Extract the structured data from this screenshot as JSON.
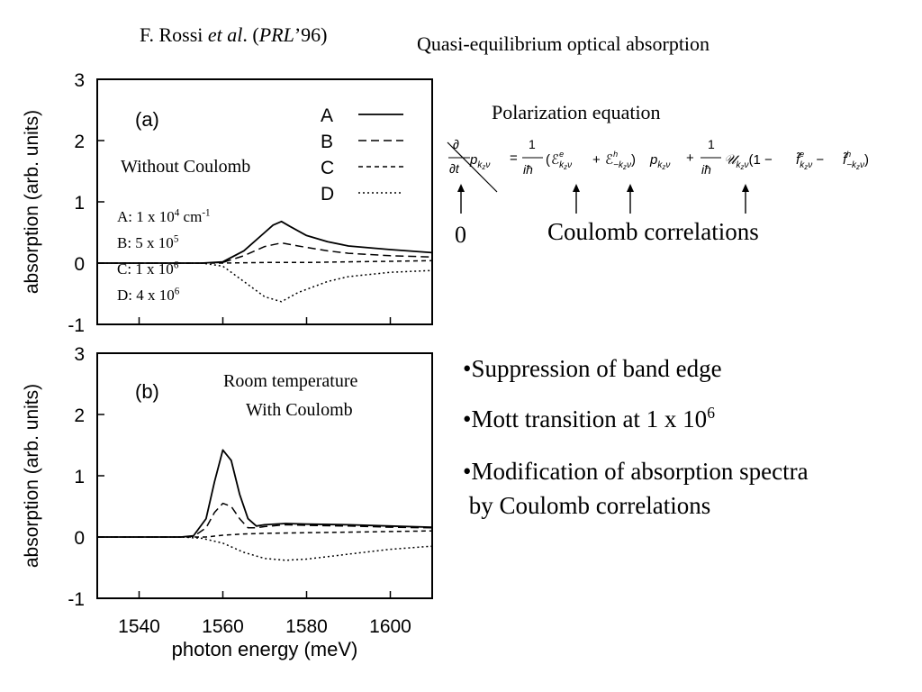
{
  "header": {
    "citation": {
      "author": "F. Rossi ",
      "etal": "et al",
      "dot": ". (",
      "journal": "PRL",
      "year": "’96)"
    },
    "title": "Quasi-equilibrium optical absorption"
  },
  "equation": {
    "title": "Polarization equation",
    "zero_label": "0",
    "coulomb_label": "Coulomb correlations"
  },
  "bullets": [
    {
      "text": "•Suppression of band edge"
    },
    {
      "text": "•Mott transition at 1 x 10",
      "sup": "6"
    },
    {
      "text": "•Modification of absorption spectra"
    },
    {
      "text": " by Coulomb correlations"
    }
  ],
  "panel_a": {
    "label": "(a)",
    "annotation": "Without Coulomb",
    "densities": [
      {
        "pre": "A: 1 x 10",
        "sup": "4",
        "post": " cm",
        "sup2": "-1"
      },
      {
        "pre": "B: 5 x 10",
        "sup": "5",
        "post": "",
        "sup2": ""
      },
      {
        "pre": "C: 1 x 10",
        "sup": "6",
        "post": "",
        "sup2": ""
      },
      {
        "pre": "D: 4 x 10",
        "sup": "6",
        "post": "",
        "sup2": ""
      }
    ]
  },
  "panel_b": {
    "label": "(b)",
    "annotation_line1": "Room temperature",
    "annotation_line2": "With Coulomb"
  },
  "chart_data": [
    {
      "type": "line",
      "panel": "(a)",
      "ylabel": "absorption (arb. units)",
      "xlabel": "",
      "xlim": [
        1530,
        1610
      ],
      "ylim": [
        -1,
        3
      ],
      "yticks": [
        "3",
        "2",
        "1",
        "0",
        "-1"
      ],
      "xticks": [],
      "legend": [
        "A",
        "B",
        "C",
        "D"
      ],
      "legend_position": "top-right",
      "series": [
        {
          "name": "A",
          "style": "solid",
          "x": [
            1530,
            1550,
            1555,
            1560,
            1565,
            1570,
            1572,
            1574,
            1576,
            1580,
            1585,
            1590,
            1600,
            1610
          ],
          "y": [
            0,
            0,
            0,
            0.02,
            0.2,
            0.5,
            0.62,
            0.68,
            0.6,
            0.45,
            0.35,
            0.28,
            0.22,
            0.17
          ]
        },
        {
          "name": "B",
          "style": "long-dash",
          "x": [
            1530,
            1550,
            1555,
            1560,
            1565,
            1570,
            1574,
            1578,
            1585,
            1590,
            1600,
            1610
          ],
          "y": [
            0,
            0,
            0,
            0.01,
            0.12,
            0.27,
            0.33,
            0.28,
            0.2,
            0.16,
            0.12,
            0.1
          ]
        },
        {
          "name": "C",
          "style": "short-dash",
          "x": [
            1530,
            1550,
            1560,
            1570,
            1580,
            1590,
            1600,
            1610
          ],
          "y": [
            0,
            0,
            0,
            0.01,
            0.01,
            0.02,
            0.03,
            0.04
          ]
        },
        {
          "name": "D",
          "style": "dotted",
          "x": [
            1530,
            1550,
            1555,
            1560,
            1565,
            1570,
            1574,
            1578,
            1585,
            1590,
            1600,
            1610
          ],
          "y": [
            0,
            0,
            0,
            -0.05,
            -0.3,
            -0.55,
            -0.63,
            -0.48,
            -0.3,
            -0.22,
            -0.15,
            -0.12
          ]
        }
      ]
    },
    {
      "type": "line",
      "panel": "(b)",
      "ylabel": "absorption (arb. units)",
      "xlabel": "photon energy (meV)",
      "xlim": [
        1530,
        1610
      ],
      "ylim": [
        -1,
        3
      ],
      "yticks": [
        "3",
        "2",
        "1",
        "0",
        "-1"
      ],
      "xticks": [
        "1540",
        "1560",
        "1580",
        "1600"
      ],
      "series": [
        {
          "name": "A",
          "style": "solid",
          "x": [
            1530,
            1550,
            1553,
            1556,
            1558,
            1560,
            1562,
            1564,
            1566,
            1568,
            1570,
            1575,
            1580,
            1590,
            1600,
            1610
          ],
          "y": [
            0,
            0,
            0.02,
            0.3,
            0.9,
            1.42,
            1.25,
            0.7,
            0.3,
            0.18,
            0.2,
            0.22,
            0.21,
            0.2,
            0.18,
            0.16
          ]
        },
        {
          "name": "B",
          "style": "long-dash",
          "x": [
            1530,
            1550,
            1553,
            1556,
            1558,
            1560,
            1562,
            1564,
            1566,
            1568,
            1570,
            1575,
            1580,
            1590,
            1600,
            1610
          ],
          "y": [
            0,
            0,
            0.01,
            0.15,
            0.4,
            0.55,
            0.5,
            0.3,
            0.15,
            0.15,
            0.17,
            0.2,
            0.19,
            0.18,
            0.16,
            0.15
          ]
        },
        {
          "name": "C",
          "style": "short-dash",
          "x": [
            1530,
            1550,
            1556,
            1560,
            1565,
            1570,
            1580,
            1590,
            1600,
            1610
          ],
          "y": [
            0,
            0,
            0,
            0.03,
            0.05,
            0.06,
            0.07,
            0.08,
            0.09,
            0.1
          ]
        },
        {
          "name": "D",
          "style": "dotted",
          "x": [
            1530,
            1550,
            1555,
            1560,
            1565,
            1570,
            1575,
            1580,
            1585,
            1590,
            1600,
            1610
          ],
          "y": [
            0,
            0,
            -0.02,
            -0.1,
            -0.25,
            -0.35,
            -0.38,
            -0.36,
            -0.32,
            -0.28,
            -0.2,
            -0.15
          ]
        }
      ]
    }
  ]
}
